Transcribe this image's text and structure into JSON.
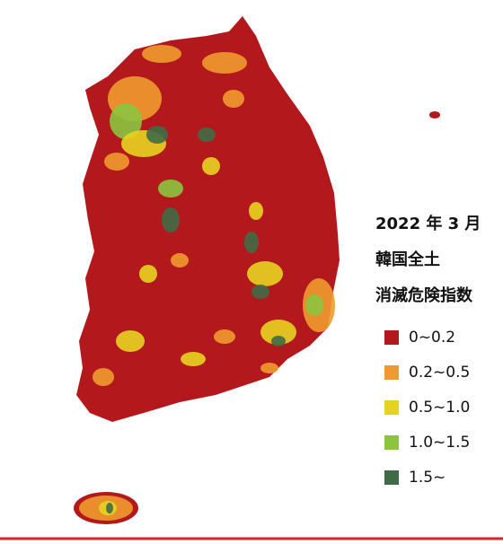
{
  "title_lines": [
    "2022 年 3 月",
    "韓国全土",
    "消滅危険指数"
  ],
  "legend": [
    {
      "label": "0~0.2",
      "color": "#b3191c"
    },
    {
      "label": "0.2~0.5",
      "color": "#ee9a30"
    },
    {
      "label": "0.5~1.0",
      "color": "#e6d321"
    },
    {
      "label": "1.0~1.5",
      "color": "#8cc43f"
    },
    {
      "label": "1.5~",
      "color": "#3f6b45"
    }
  ]
}
